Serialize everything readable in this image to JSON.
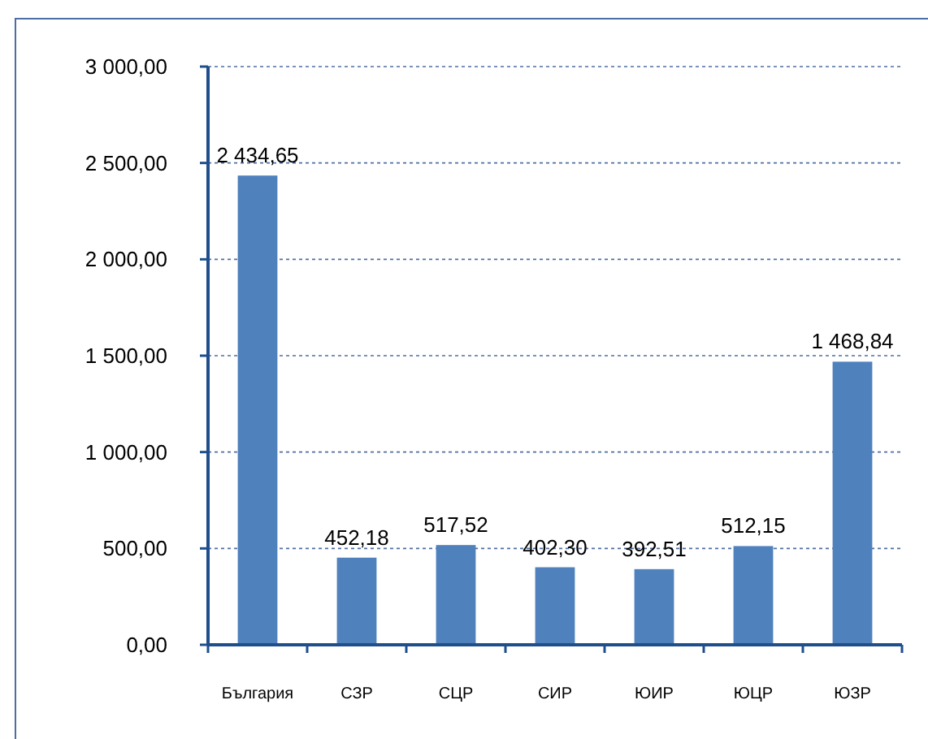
{
  "chart_data": {
    "type": "bar",
    "categories": [
      "България",
      "СЗР",
      "СЦР",
      "СИР",
      "ЮИР",
      "ЮЦР",
      "ЮЗР"
    ],
    "values": [
      2434.65,
      452.18,
      517.52,
      402.3,
      392.51,
      512.15,
      1468.84
    ],
    "value_labels": [
      "2 434,65",
      "452,18",
      "517,52",
      "402,30",
      "392,51",
      "512,15",
      "1 468,84"
    ],
    "color": "#4f81bd",
    "ylim": [
      0,
      3000
    ],
    "yticks": [
      {
        "value": 0,
        "label": "0,00"
      },
      {
        "value": 500,
        "label": "500,00"
      },
      {
        "value": 1000,
        "label": "1 000,00"
      },
      {
        "value": 1500,
        "label": "1 500,00"
      },
      {
        "value": 2000,
        "label": "2 000,00"
      },
      {
        "value": 2500,
        "label": "2 500,00"
      },
      {
        "value": 3000,
        "label": "3 000,00"
      }
    ],
    "grid": "y"
  }
}
